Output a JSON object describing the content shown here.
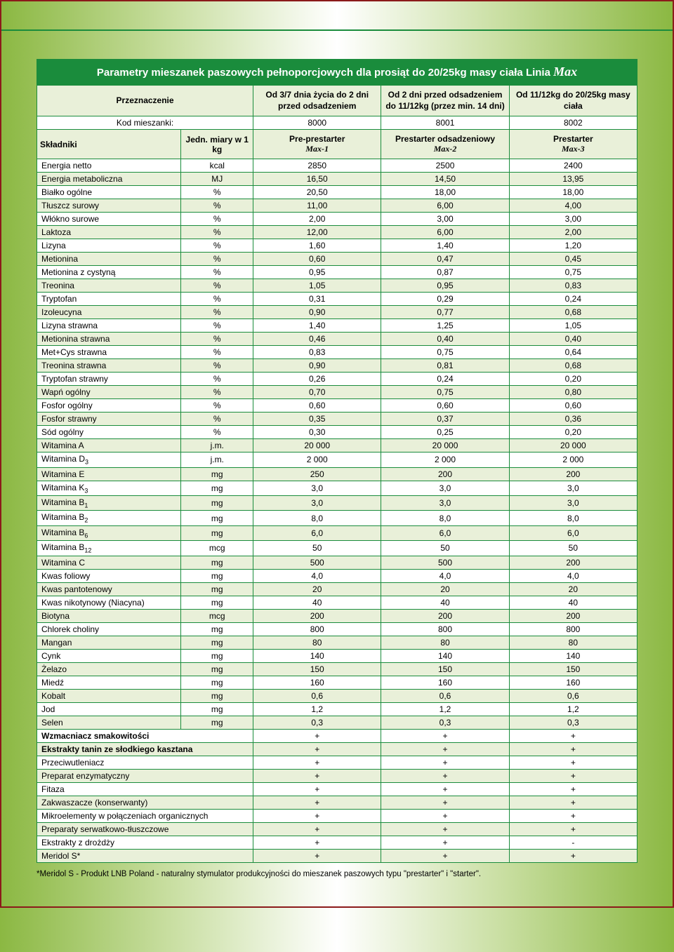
{
  "title": "Parametry mieszanek paszowych pełnoporcjowych dla prosiąt do 20/25kg masy ciała Linia",
  "title_brand": "Max",
  "header": {
    "przeznaczenie": "Przeznaczenie",
    "col1": "Od 3/7 dnia życia do 2 dni przed odsadzeniem",
    "col2": "Od 2 dni przed odsadzeniem do 11/12kg (przez min. 14 dni)",
    "col3": "Od 11/12kg do 20/25kg masy ciała"
  },
  "kod_label": "Kod mieszanki:",
  "kod": [
    "8000",
    "8001",
    "8002"
  ],
  "sub": {
    "skladniki": "Składniki",
    "unit_label": "Jedn. miary w 1 kg",
    "names": [
      "Pre-prestarter",
      "Prestarter odsadzeniowy",
      "Prestarter"
    ],
    "brands": [
      "Max-1",
      "Max-2",
      "Max-3"
    ]
  },
  "rows": [
    {
      "n": "Energia netto",
      "u": "kcal",
      "v": [
        "2850",
        "2500",
        "2400"
      ]
    },
    {
      "n": "Energia metaboliczna",
      "u": "MJ",
      "v": [
        "16,50",
        "14,50",
        "13,95"
      ]
    },
    {
      "n": "Białko ogólne",
      "u": "%",
      "v": [
        "20,50",
        "18,00",
        "18,00"
      ]
    },
    {
      "n": "Tłuszcz surowy",
      "u": "%",
      "v": [
        "11,00",
        "6,00",
        "4,00"
      ]
    },
    {
      "n": "Włókno surowe",
      "u": "%",
      "v": [
        "2,00",
        "3,00",
        "3,00"
      ]
    },
    {
      "n": "Laktoza",
      "u": "%",
      "v": [
        "12,00",
        "6,00",
        "2,00"
      ]
    },
    {
      "n": "Lizyna",
      "u": "%",
      "v": [
        "1,60",
        "1,40",
        "1,20"
      ]
    },
    {
      "n": "Metionina",
      "u": "%",
      "v": [
        "0,60",
        "0,47",
        "0,45"
      ]
    },
    {
      "n": "Metionina z cystyną",
      "u": "%",
      "v": [
        "0,95",
        "0,87",
        "0,75"
      ]
    },
    {
      "n": "Treonina",
      "u": "%",
      "v": [
        "1,05",
        "0,95",
        "0,83"
      ]
    },
    {
      "n": "Tryptofan",
      "u": "%",
      "v": [
        "0,31",
        "0,29",
        "0,24"
      ]
    },
    {
      "n": "Izoleucyna",
      "u": "%",
      "v": [
        "0,90",
        "0,77",
        "0,68"
      ]
    },
    {
      "n": "Lizyna strawna",
      "u": "%",
      "v": [
        "1,40",
        "1,25",
        "1,05"
      ]
    },
    {
      "n": "Metionina strawna",
      "u": "%",
      "v": [
        "0,46",
        "0,40",
        "0,40"
      ]
    },
    {
      "n": "Met+Cys strawna",
      "u": "%",
      "v": [
        "0,83",
        "0,75",
        "0,64"
      ]
    },
    {
      "n": "Treonina strawna",
      "u": "%",
      "v": [
        "0,90",
        "0,81",
        "0,68"
      ]
    },
    {
      "n": "Tryptofan strawny",
      "u": "%",
      "v": [
        "0,26",
        "0,24",
        "0,20"
      ]
    },
    {
      "n": "Wapń ogólny",
      "u": "%",
      "v": [
        "0,70",
        "0,75",
        "0,80"
      ]
    },
    {
      "n": "Fosfor ogólny",
      "u": "%",
      "v": [
        "0,60",
        "0,60",
        "0,60"
      ]
    },
    {
      "n": "Fosfor strawny",
      "u": "%",
      "v": [
        "0,35",
        "0,37",
        "0,36"
      ]
    },
    {
      "n": "Sód ogólny",
      "u": "%",
      "v": [
        "0,30",
        "0,25",
        "0,20"
      ]
    },
    {
      "n": "Witamina A",
      "u": "j.m.",
      "v": [
        "20 000",
        "20 000",
        "20 000"
      ]
    },
    {
      "n": "Witamina D<sub>3</sub>",
      "u": "j.m.",
      "v": [
        "2 000",
        "2 000",
        "2 000"
      ],
      "html": true
    },
    {
      "n": "Witamina E",
      "u": "mg",
      "v": [
        "250",
        "200",
        "200"
      ]
    },
    {
      "n": "Witamina K<sub>3</sub>",
      "u": "mg",
      "v": [
        "3,0",
        "3,0",
        "3,0"
      ],
      "html": true
    },
    {
      "n": "Witamina B<sub>1</sub>",
      "u": "mg",
      "v": [
        "3,0",
        "3,0",
        "3,0"
      ],
      "html": true
    },
    {
      "n": "Witamina B<sub>2</sub>",
      "u": "mg",
      "v": [
        "8,0",
        "8,0",
        "8,0"
      ],
      "html": true
    },
    {
      "n": "Witamina B<sub>6</sub>",
      "u": "mg",
      "v": [
        "6,0",
        "6,0",
        "6,0"
      ],
      "html": true
    },
    {
      "n": "Witamina B<sub>12</sub>",
      "u": "mcg",
      "v": [
        "50",
        "50",
        "50"
      ],
      "html": true
    },
    {
      "n": "Witamina C",
      "u": "mg",
      "v": [
        "500",
        "500",
        "200"
      ]
    },
    {
      "n": "Kwas foliowy",
      "u": "mg",
      "v": [
        "4,0",
        "4,0",
        "4,0"
      ]
    },
    {
      "n": "Kwas pantotenowy",
      "u": "mg",
      "v": [
        "20",
        "20",
        "20"
      ]
    },
    {
      "n": "Kwas nikotynowy (Niacyna)",
      "u": "mg",
      "v": [
        "40",
        "40",
        "40"
      ]
    },
    {
      "n": "Biotyna",
      "u": "mcg",
      "v": [
        "200",
        "200",
        "200"
      ]
    },
    {
      "n": "Chlorek choliny",
      "u": "mg",
      "v": [
        "800",
        "800",
        "800"
      ]
    },
    {
      "n": "Mangan",
      "u": "mg",
      "v": [
        "80",
        "80",
        "80"
      ]
    },
    {
      "n": "Cynk",
      "u": "mg",
      "v": [
        "140",
        "140",
        "140"
      ]
    },
    {
      "n": "Żelazo",
      "u": "mg",
      "v": [
        "150",
        "150",
        "150"
      ]
    },
    {
      "n": "Miedź",
      "u": "mg",
      "v": [
        "160",
        "160",
        "160"
      ]
    },
    {
      "n": "Kobalt",
      "u": "mg",
      "v": [
        "0,6",
        "0,6",
        "0,6"
      ]
    },
    {
      "n": "Jod",
      "u": "mg",
      "v": [
        "1,2",
        "1,2",
        "1,2"
      ]
    },
    {
      "n": "Selen",
      "u": "mg",
      "v": [
        "0,3",
        "0,3",
        "0,3"
      ]
    },
    {
      "n": "Wzmacniacz smakowitości",
      "u": "",
      "v": [
        "+",
        "+",
        "+"
      ],
      "bold": true
    },
    {
      "n": "Ekstrakty tanin ze słodkiego kasztana",
      "u": "",
      "v": [
        "+",
        "+",
        "+"
      ],
      "bold": true
    },
    {
      "n": "Przeciwutleniacz",
      "u": "",
      "v": [
        "+",
        "+",
        "+"
      ]
    },
    {
      "n": "Preparat enzymatyczny",
      "u": "",
      "v": [
        "+",
        "+",
        "+"
      ]
    },
    {
      "n": "Fitaza",
      "u": "",
      "v": [
        "+",
        "+",
        "+"
      ]
    },
    {
      "n": "Zakwaszacze (konserwanty)",
      "u": "",
      "v": [
        "+",
        "+",
        "+"
      ]
    },
    {
      "n": "Mikroelementy w połączeniach organicznych",
      "u": "",
      "v": [
        "+",
        "+",
        "+"
      ]
    },
    {
      "n": "Preparaty serwatkowo-tłuszczowe",
      "u": "",
      "v": [
        "+",
        "+",
        "+"
      ]
    },
    {
      "n": "Ekstrakty z drożdży",
      "u": "",
      "v": [
        "+",
        "+",
        "-"
      ]
    },
    {
      "n": "Meridol S*",
      "u": "",
      "v": [
        "+",
        "+",
        "+"
      ]
    }
  ],
  "footnote": "*Meridol S - Produkt LNB Poland - naturalny stymulator produkcyjności do mieszanek paszowych typu \"prestarter\" i \"starter\".",
  "colors": {
    "primary": "#1a8c3c",
    "alt_row": "#e9f0d9",
    "border_outer": "#8b1a1a"
  }
}
